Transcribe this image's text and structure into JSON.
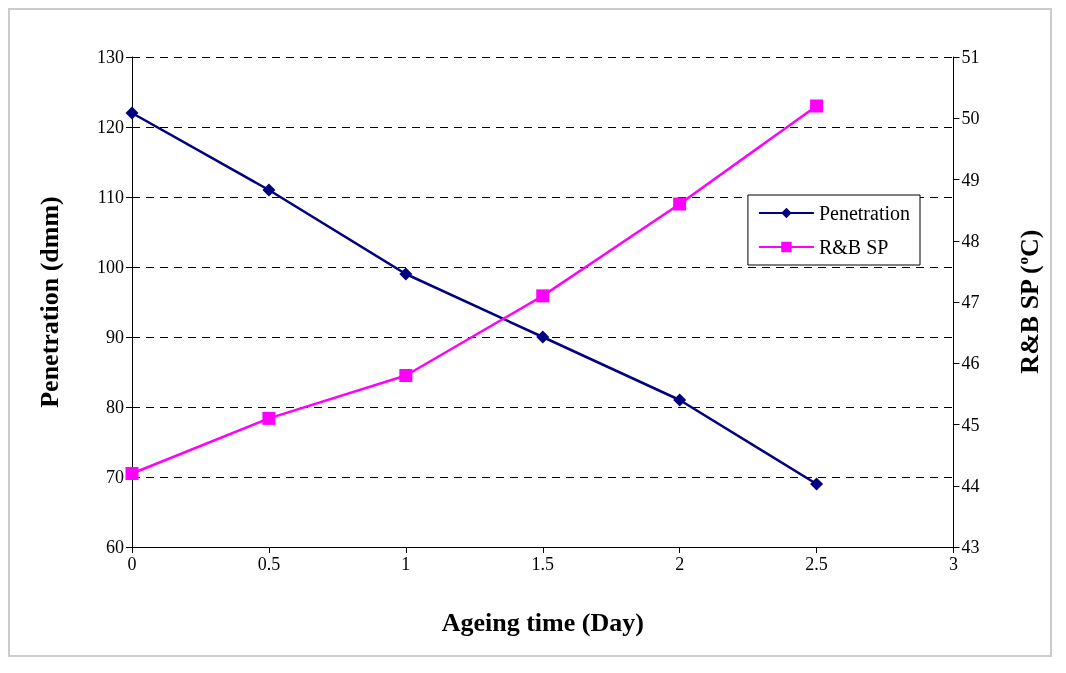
{
  "chart_data": {
    "type": "line",
    "xlabel": "Ageing time (Day)",
    "ylabel": "Penetration (dmm)",
    "y2label": "R&B SP ($^{o}$C)",
    "x": [
      0,
      0.5,
      1,
      1.5,
      2,
      2.5
    ],
    "series": [
      {
        "name": "Penetration",
        "color": "#000080",
        "marker": "diamond",
        "values": [
          122,
          111,
          99,
          90,
          81,
          69
        ]
      },
      {
        "name": "R&B SP",
        "color": "#ff00ff",
        "marker": "square",
        "axis": "y2",
        "values": [
          44.2,
          45.1,
          45.8,
          47.1,
          48.6,
          50.2
        ]
      }
    ],
    "xlim": [
      0,
      3
    ],
    "xticks": [
      0,
      0.5,
      1,
      1.5,
      2,
      2.5,
      3
    ],
    "ylim": [
      60,
      130
    ],
    "yticks": [
      60,
      70,
      80,
      90,
      100,
      110,
      120,
      130
    ],
    "y2lim": [
      43,
      51
    ],
    "y2ticks": [
      43,
      44,
      45,
      46,
      47,
      48,
      49,
      50,
      51
    ],
    "grid": "y",
    "legend": "right"
  }
}
